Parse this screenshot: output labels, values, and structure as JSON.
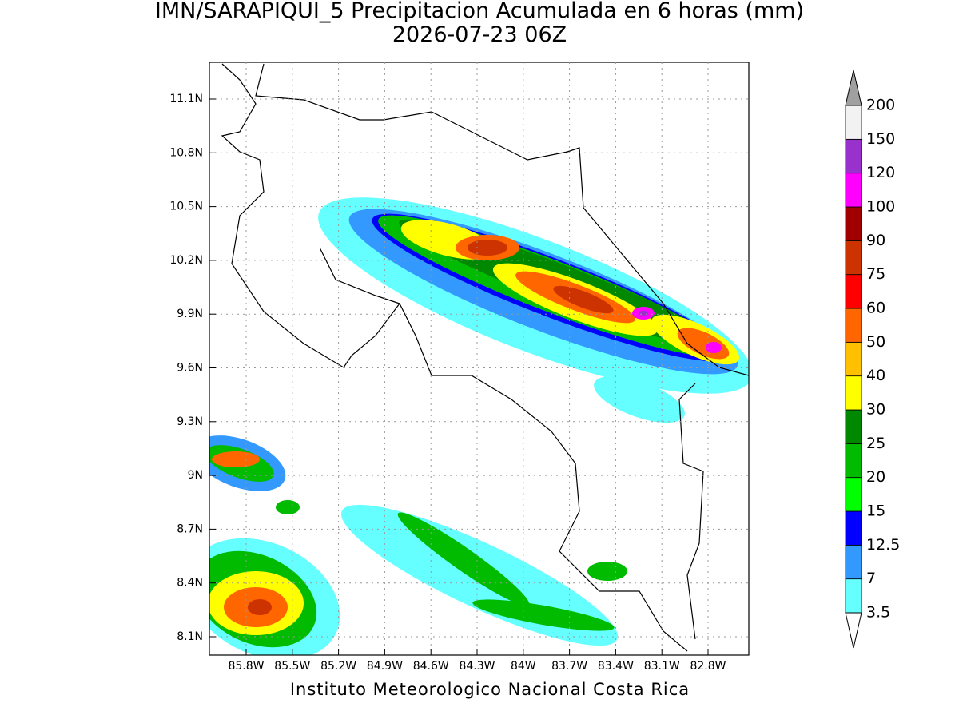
{
  "title": "IMN/SARAPIQUI_5 Precipitacion Acumulada en 6 horas (mm)",
  "subtitle": "2026-07-23 06Z",
  "lat_labels": [
    "11.1N",
    "10.8N",
    "10.5N",
    "10.2N",
    "9.9N",
    "9.6N",
    "9.3N",
    "9N",
    "8.7N",
    "8.4N",
    "8.1N"
  ],
  "lon_labels": [
    "85.8W",
    "85.5W",
    "85.2W",
    "84.9W",
    "84.6W",
    "84.3W",
    "84W",
    "83.7W",
    "83.4W",
    "83.1W",
    "82.8W"
  ],
  "colorbar": {
    "levels": [
      3.5,
      7,
      12.5,
      15,
      20,
      25,
      30,
      40,
      50,
      60,
      75,
      90,
      100,
      120,
      150,
      200
    ],
    "colors": [
      "#66ffff",
      "#3399ff",
      "#0000ff",
      "#00ff00",
      "#00bb00",
      "#008800",
      "#ffff00",
      "#ffc000",
      "#ff6600",
      "#ff0000",
      "#cc3300",
      "#a00000",
      "#ff00ff",
      "#9932cc",
      "#f2f2f2"
    ],
    "under_color": "#ffffff",
    "over_color": "#a0a0a0"
  },
  "credit": "Instituto Meteorologico Nacional Costa Rica"
}
